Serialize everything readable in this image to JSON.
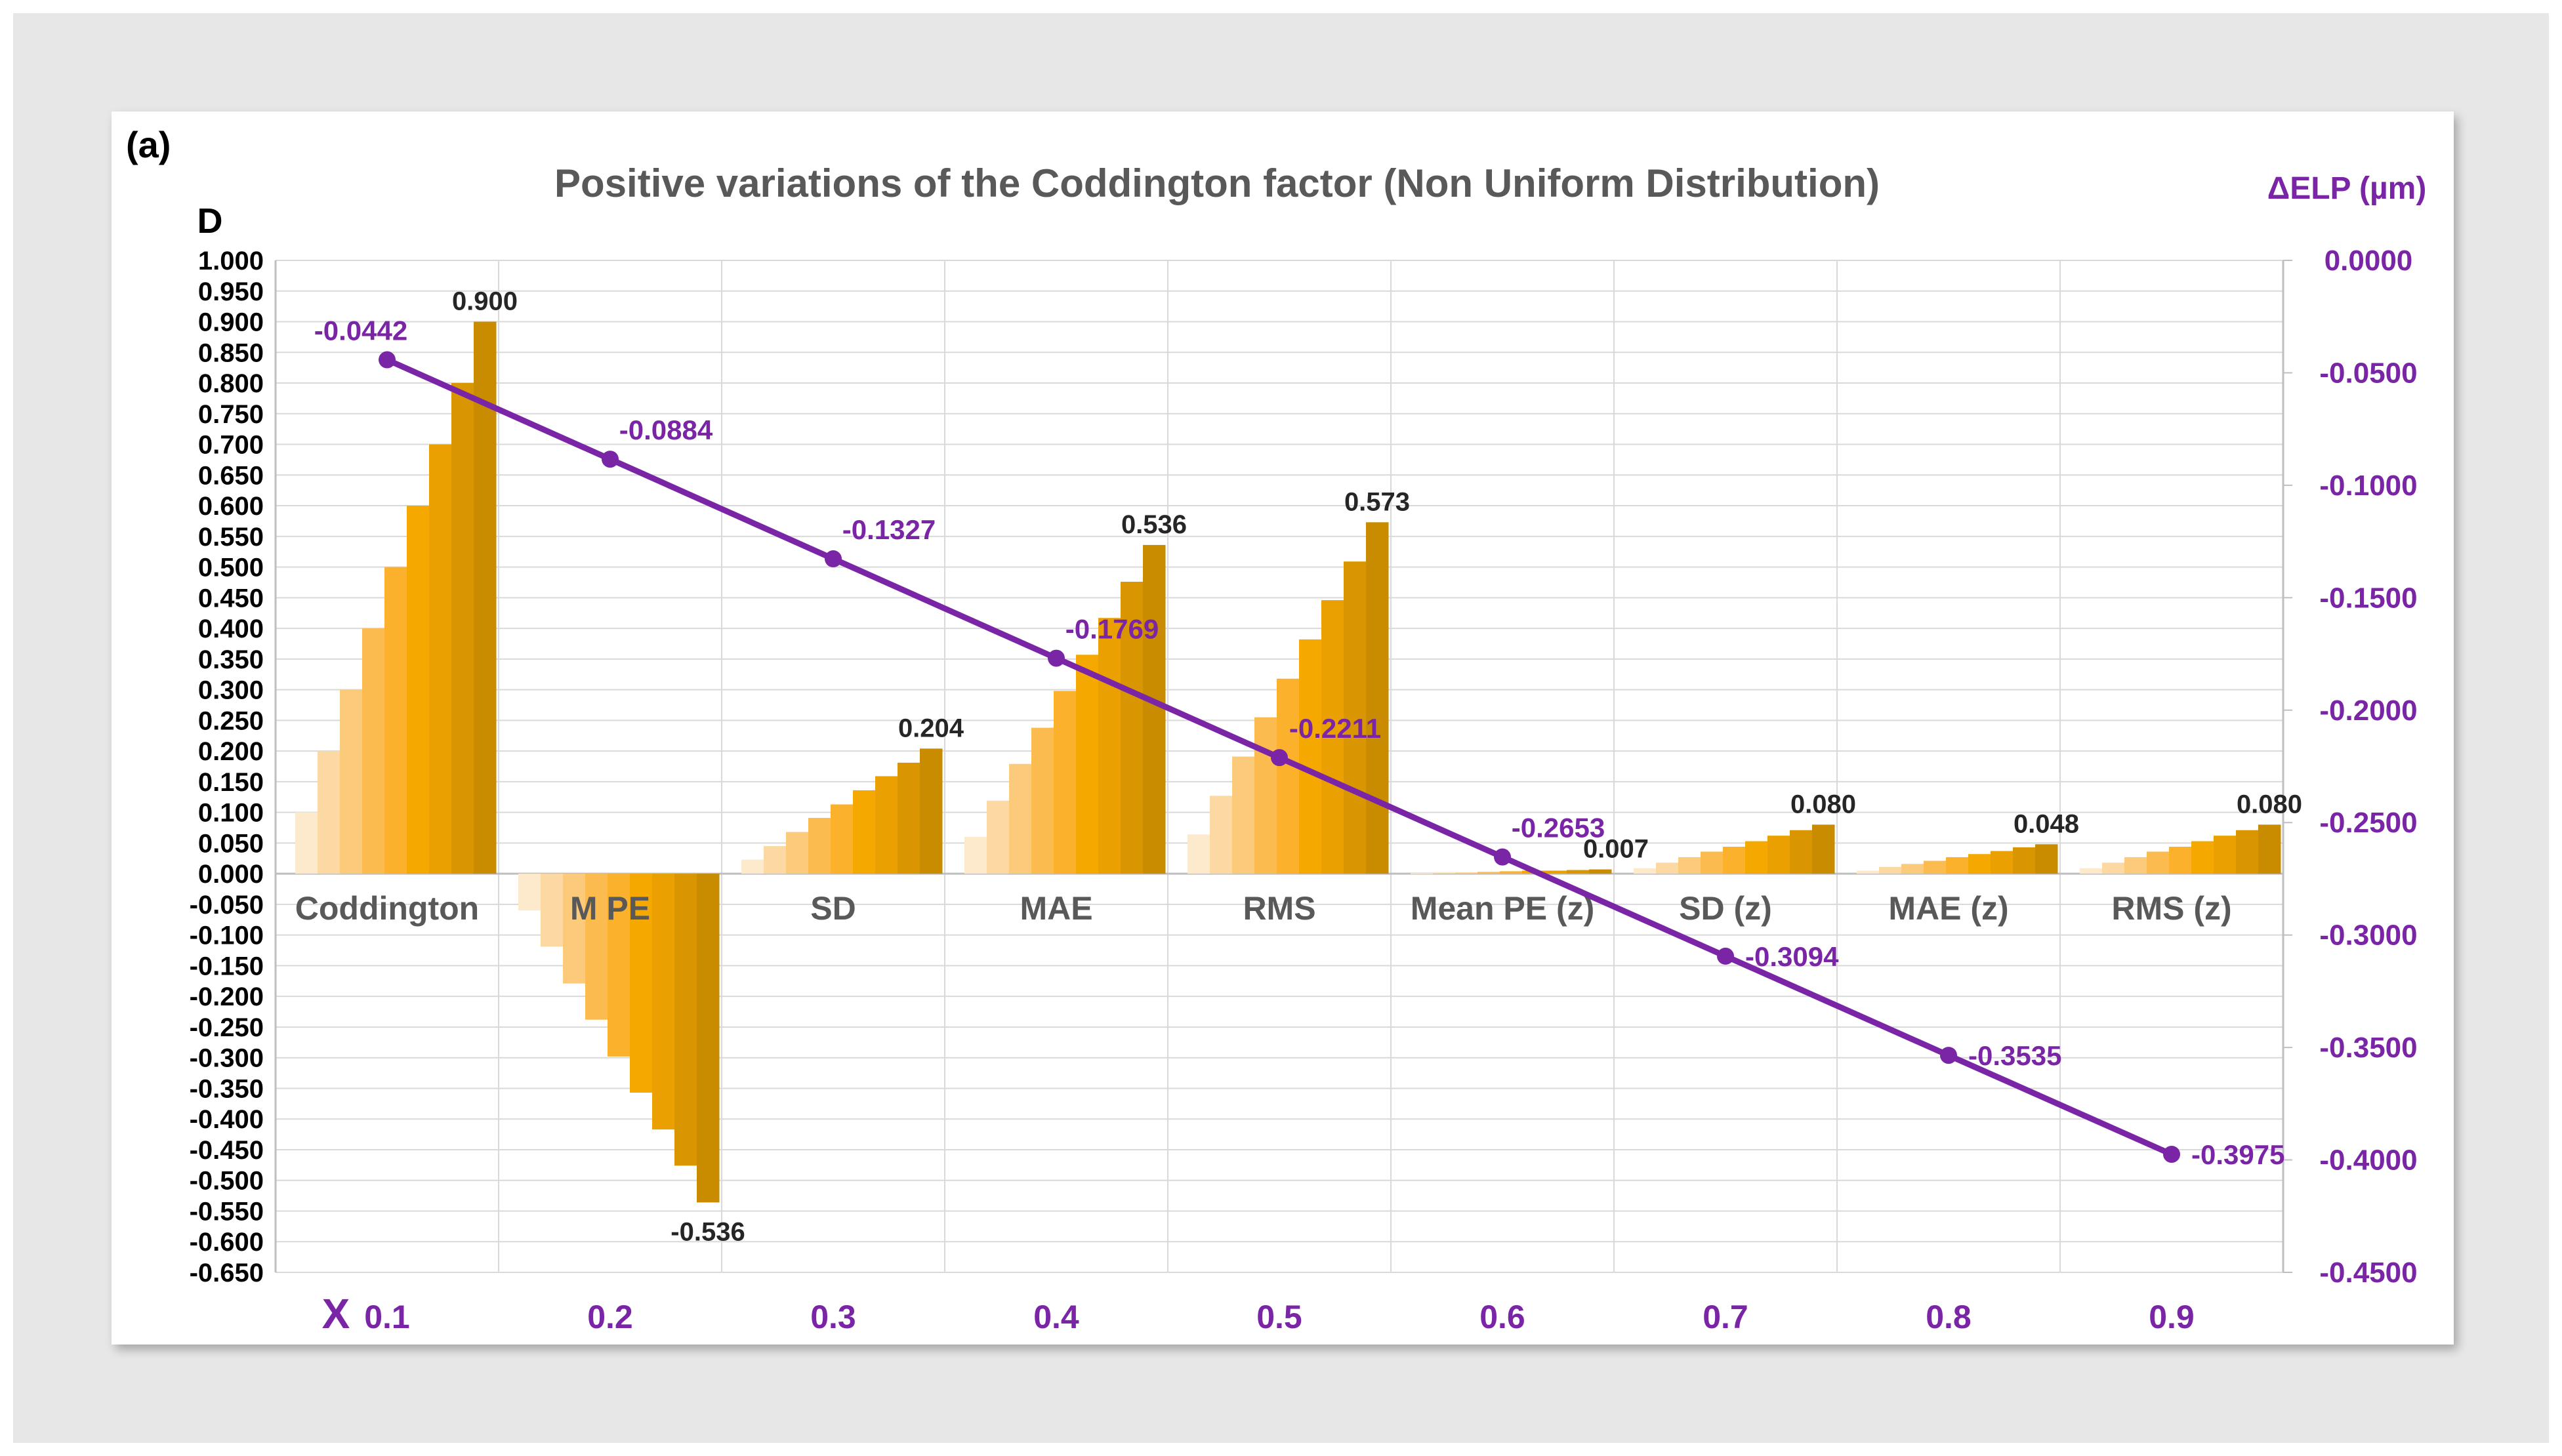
{
  "panel_label": "(a)",
  "chart_data": {
    "type": "bar",
    "title": "Positive variations of the Coddington factor (Non Uniform Distribution)",
    "ylabel": "D",
    "y2label": "ΔELP (µm)",
    "xlabel": "X",
    "ylim": [
      -0.65,
      1.0
    ],
    "y2lim": [
      -0.45,
      0.0
    ],
    "y_ticks": [
      "1.000",
      "0.950",
      "0.900",
      "0.850",
      "0.800",
      "0.750",
      "0.700",
      "0.650",
      "0.600",
      "0.550",
      "0.500",
      "0.450",
      "0.400",
      "0.350",
      "0.300",
      "0.250",
      "0.200",
      "0.150",
      "0.100",
      "0.050",
      "0.000",
      "-0.050",
      "-0.100",
      "-0.150",
      "-0.200",
      "-0.250",
      "-0.300",
      "-0.350",
      "-0.400",
      "-0.450",
      "-0.500",
      "-0.550",
      "-0.600",
      "-0.650"
    ],
    "y2_ticks": [
      "0.0000",
      "-0.0500",
      "-0.1000",
      "-0.1500",
      "-0.2000",
      "-0.2500",
      "-0.3000",
      "-0.3500",
      "-0.4000",
      "-0.4500"
    ],
    "categories": [
      "Coddington",
      "M PE",
      "SD",
      "MAE",
      "RMS",
      "Mean PE (z)",
      "SD (z)",
      "MAE (z)",
      "RMS (z)"
    ],
    "bar_colors": [
      "#fde9cc",
      "#fcd9a3",
      "#fbca7a",
      "#fbbb4f",
      "#fbb12b",
      "#f5a800",
      "#e9a000",
      "#d99600",
      "#c98b00"
    ],
    "bar_groups": [
      {
        "category": "Coddington",
        "values": [
          0.1,
          0.2,
          0.3,
          0.4,
          0.5,
          0.6,
          0.7,
          0.8,
          0.9
        ],
        "label": "0.900"
      },
      {
        "category": "M PE",
        "values": [
          -0.06,
          -0.119,
          -0.179,
          -0.238,
          -0.298,
          -0.357,
          -0.417,
          -0.476,
          -0.536
        ],
        "label": "-0.536"
      },
      {
        "category": "SD",
        "values": [
          0.023,
          0.045,
          0.068,
          0.091,
          0.113,
          0.136,
          0.159,
          0.181,
          0.204
        ],
        "label": "0.204"
      },
      {
        "category": "MAE",
        "values": [
          0.06,
          0.119,
          0.179,
          0.238,
          0.298,
          0.357,
          0.417,
          0.476,
          0.536
        ],
        "label": "0.536"
      },
      {
        "category": "RMS",
        "values": [
          0.064,
          0.127,
          0.191,
          0.255,
          0.318,
          0.382,
          0.446,
          0.509,
          0.573
        ],
        "label": "0.573"
      },
      {
        "category": "Mean PE (z)",
        "values": [
          0.001,
          0.002,
          0.002,
          0.003,
          0.004,
          0.005,
          0.005,
          0.006,
          0.007
        ],
        "label": "0.007"
      },
      {
        "category": "SD (z)",
        "values": [
          0.009,
          0.018,
          0.027,
          0.036,
          0.044,
          0.053,
          0.062,
          0.071,
          0.08
        ],
        "label": "0.080"
      },
      {
        "category": "MAE (z)",
        "values": [
          0.005,
          0.011,
          0.016,
          0.021,
          0.027,
          0.032,
          0.037,
          0.043,
          0.048
        ],
        "label": "0.048"
      },
      {
        "category": "RMS (z)",
        "values": [
          0.009,
          0.018,
          0.027,
          0.036,
          0.044,
          0.053,
          0.062,
          0.071,
          0.08
        ],
        "label": "0.080"
      }
    ],
    "line_series": {
      "name": "ΔELP (µm)",
      "color": "#7a24a6",
      "x": [
        0.1,
        0.2,
        0.3,
        0.4,
        0.5,
        0.6,
        0.7,
        0.8,
        0.9
      ],
      "x_labels": [
        "0.1",
        "0.2",
        "0.3",
        "0.4",
        "0.5",
        "0.6",
        "0.7",
        "0.8",
        "0.9"
      ],
      "values": [
        -0.0442,
        -0.0884,
        -0.1327,
        -0.1769,
        -0.2211,
        -0.2653,
        -0.3094,
        -0.3535,
        -0.3975
      ],
      "labels": [
        "-0.0442",
        "-0.0884",
        "-0.1327",
        "-0.1769",
        "-0.2211",
        "-0.2653",
        "-0.3094",
        "-0.3535",
        "-0.3975"
      ]
    },
    "grid": true,
    "legend": "none"
  }
}
